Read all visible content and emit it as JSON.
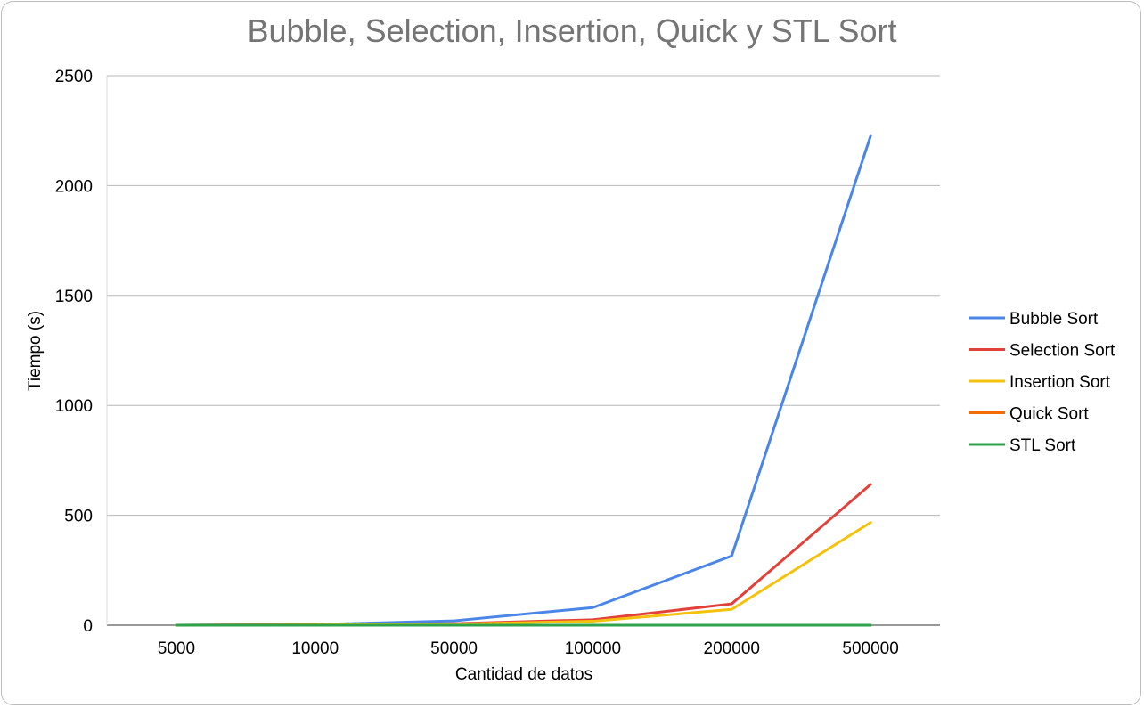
{
  "chart_data": {
    "type": "line",
    "title": "Bubble, Selection, Insertion, Quick y STL Sort",
    "xlabel": "Cantidad de datos",
    "ylabel": "Tiempo (s)",
    "categories": [
      "5000",
      "10000",
      "50000",
      "100000",
      "200000",
      "500000"
    ],
    "ylim": [
      0,
      2500
    ],
    "yticks": [
      0,
      500,
      1000,
      1500,
      2000,
      2500
    ],
    "grid": true,
    "legend_position": "right",
    "series": [
      {
        "name": "Bubble Sort",
        "color": "#4a86e8",
        "values": [
          0.2,
          3,
          20,
          80,
          315,
          2225
        ]
      },
      {
        "name": "Selection Sort",
        "color": "#e2413a",
        "values": [
          0.1,
          2,
          7,
          25,
          97,
          640
        ]
      },
      {
        "name": "Insertion Sort",
        "color": "#f4c20d",
        "values": [
          0.1,
          1.5,
          5,
          18,
          72,
          467
        ]
      },
      {
        "name": "Quick Sort",
        "color": "#f46d02",
        "values": [
          0,
          0,
          0,
          0,
          0,
          0
        ]
      },
      {
        "name": "STL Sort",
        "color": "#2ea34b",
        "values": [
          0,
          0,
          0,
          0,
          0,
          0
        ]
      }
    ]
  }
}
